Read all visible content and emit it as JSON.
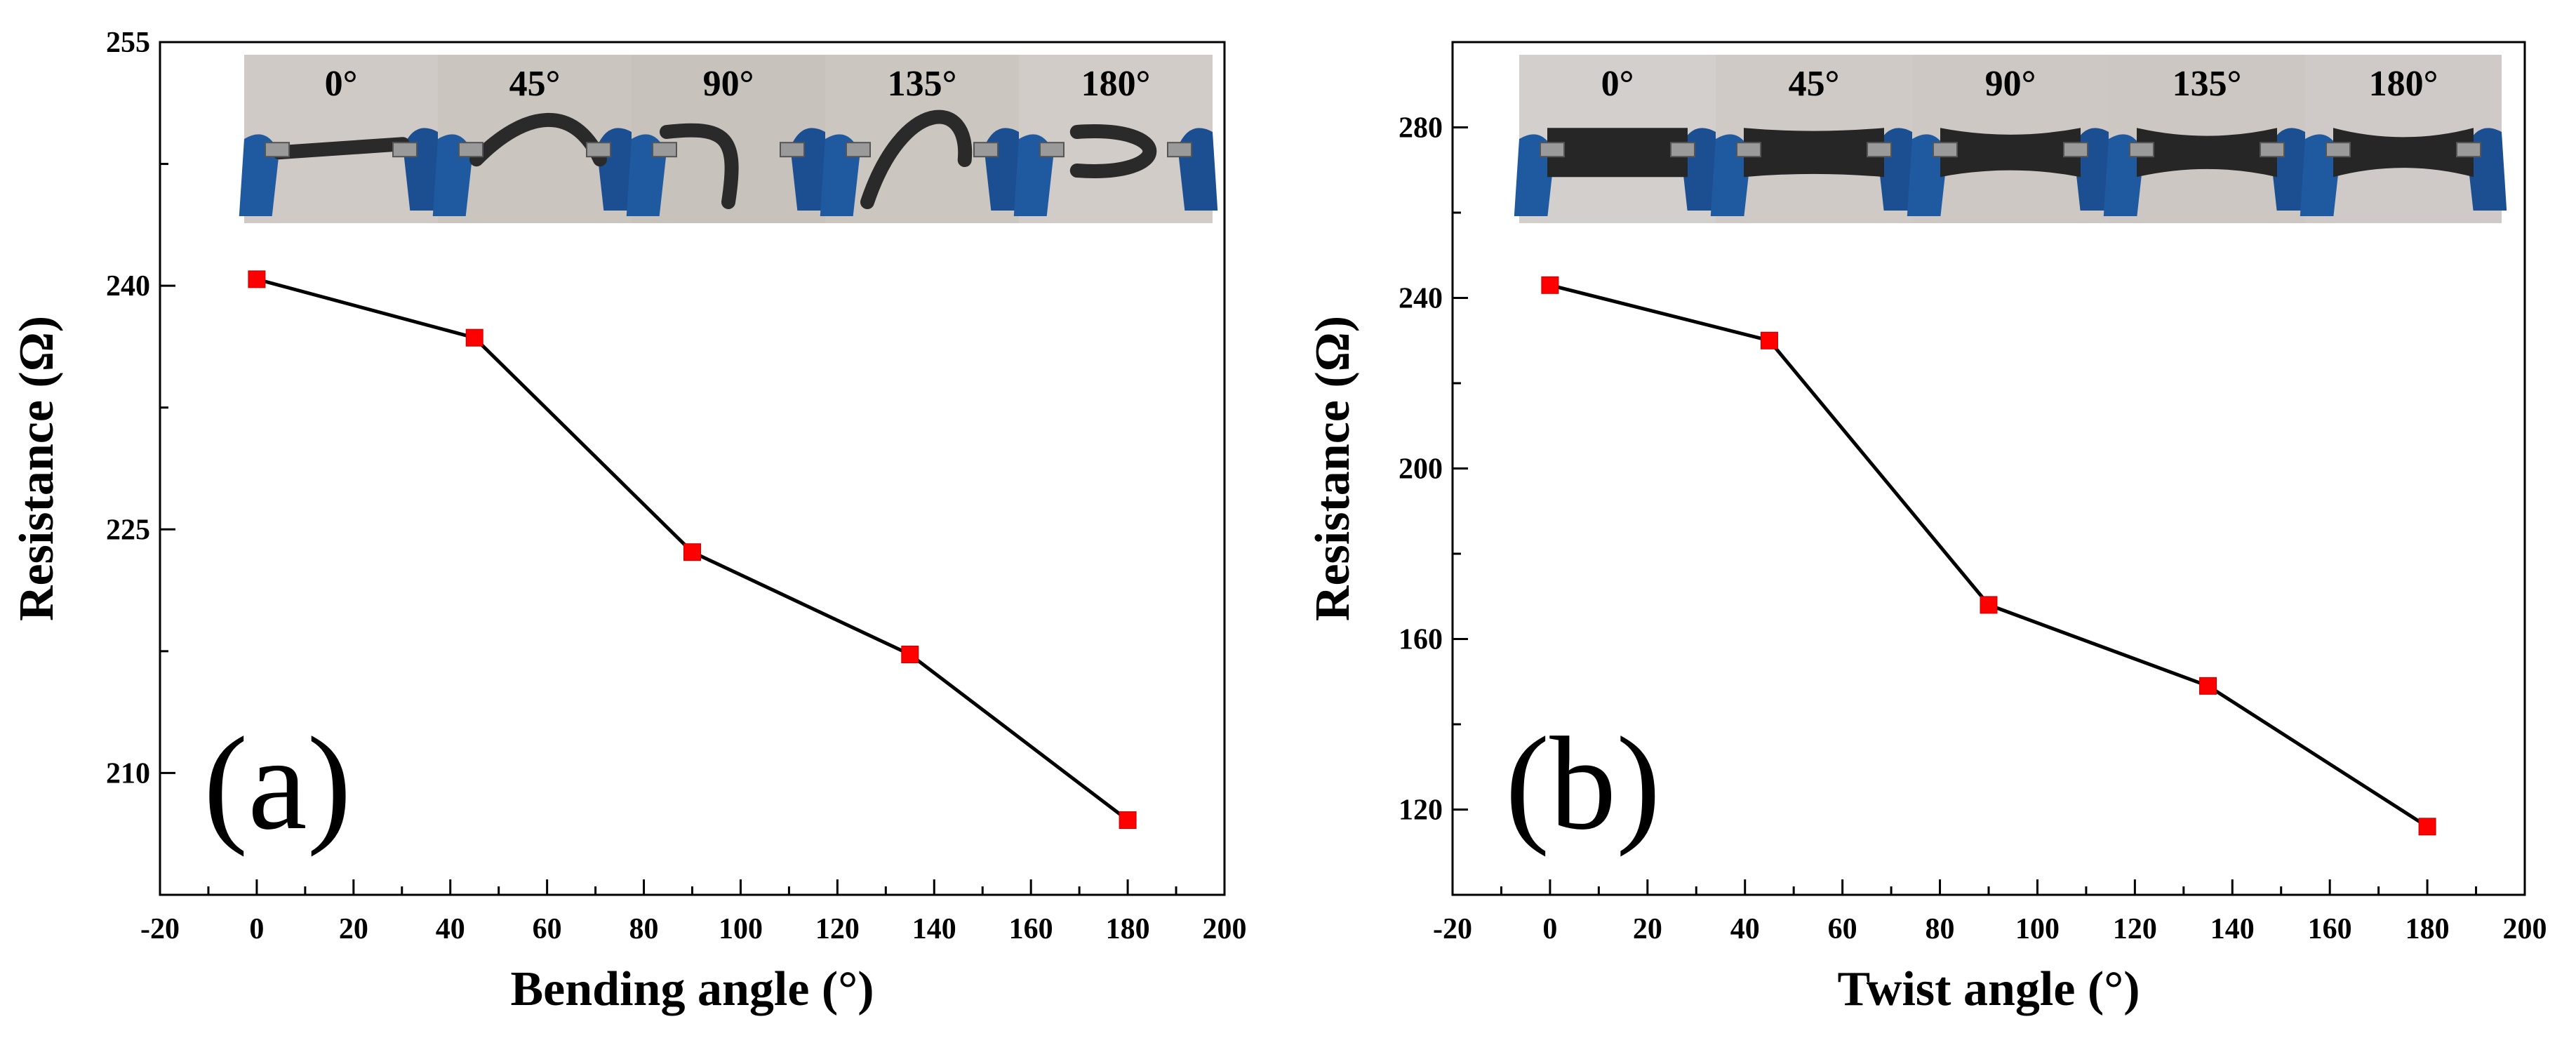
{
  "chart_data": [
    {
      "type": "line",
      "panel_label": "(a)",
      "xlabel": "Bending angle (°)",
      "ylabel": "Resistance (Ω)",
      "xlim": [
        -20,
        200
      ],
      "ylim": [
        202.5,
        255
      ],
      "x_ticks": [
        -20,
        0,
        20,
        40,
        60,
        80,
        100,
        120,
        140,
        160,
        180,
        200
      ],
      "y_ticks": [
        210,
        225,
        240,
        255
      ],
      "x": [
        0,
        45,
        90,
        135,
        180
      ],
      "values": [
        240.4,
        236.8,
        223.6,
        217.3,
        207.1
      ],
      "marker": "square",
      "marker_color": "#ff0000",
      "line_color": "#000000",
      "inset_labels": [
        "0°",
        "45°",
        "90°",
        "135°",
        "180°"
      ]
    },
    {
      "type": "line",
      "panel_label": "(b)",
      "xlabel": "Twist angle (°)",
      "ylabel": "Resistance (Ω)",
      "xlim": [
        -20,
        200
      ],
      "ylim": [
        100,
        300
      ],
      "x_ticks": [
        -20,
        0,
        20,
        40,
        60,
        80,
        100,
        120,
        140,
        160,
        180,
        200
      ],
      "y_ticks": [
        120,
        160,
        200,
        240,
        280
      ],
      "x": [
        0,
        45,
        90,
        135,
        180
      ],
      "values": [
        243,
        230,
        168,
        149,
        116
      ],
      "marker": "square",
      "marker_color": "#ff0000",
      "line_color": "#000000",
      "inset_labels": [
        "0°",
        "45°",
        "90°",
        "135°",
        "180°"
      ]
    }
  ]
}
